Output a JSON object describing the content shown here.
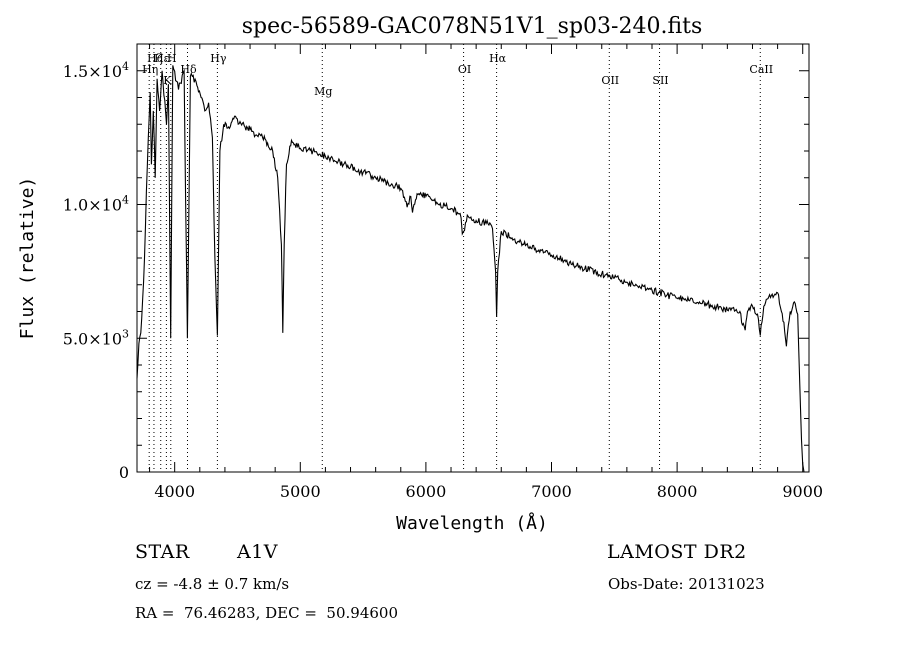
{
  "chart_data": {
    "type": "line",
    "title": "spec-56589-GAC078N51V1_sp03-240.fits",
    "xlabel": "Wavelength (Å)",
    "ylabel": "Flux (relative)",
    "xlim": [
      3700,
      9050
    ],
    "ylim": [
      0,
      16000
    ],
    "x_ticks": [
      {
        "value": 4000,
        "label": "4000"
      },
      {
        "value": 5000,
        "label": "5000"
      },
      {
        "value": 6000,
        "label": "6000"
      },
      {
        "value": 7000,
        "label": "7000"
      },
      {
        "value": 8000,
        "label": "8000"
      },
      {
        "value": 9000,
        "label": "9000"
      }
    ],
    "x_minor_step": 200,
    "y_ticks": [
      {
        "value": 0,
        "mantissa": "0",
        "exponent": ""
      },
      {
        "value": 5000,
        "mantissa": "5.0×10",
        "exponent": "3"
      },
      {
        "value": 10000,
        "mantissa": "1.0×10",
        "exponent": "4"
      },
      {
        "value": 15000,
        "mantissa": "1.5×10",
        "exponent": "4"
      }
    ],
    "y_minor_step": 1000,
    "line_color": "#000000",
    "grid": false,
    "series": [
      {
        "x": [
          3700,
          3715,
          3730,
          3745,
          3760,
          3775,
          3790,
          3805,
          3815,
          3830,
          3845,
          3860,
          3880,
          3900,
          3935,
          3950,
          3968,
          3985,
          4030,
          4075,
          4101,
          4125,
          4170,
          4210,
          4240,
          4270,
          4300,
          4320,
          4340,
          4360,
          4390,
          4430,
          4470,
          4520,
          4560,
          4600,
          4650,
          4700,
          4740,
          4780,
          4820,
          4850,
          4861,
          4872,
          4890,
          4930,
          5000,
          5100,
          5200,
          5300,
          5400,
          5500,
          5600,
          5700,
          5800,
          5850,
          5880,
          5893,
          5905,
          5930,
          6000,
          6050,
          6100,
          6150,
          6200,
          6250,
          6280,
          6290,
          6300,
          6330,
          6400,
          6480,
          6530,
          6555,
          6563,
          6572,
          6600,
          6700,
          6800,
          6900,
          7000,
          7100,
          7200,
          7300,
          7400,
          7500,
          7600,
          7700,
          7800,
          7900,
          8000,
          8100,
          8200,
          8300,
          8400,
          8450,
          8500,
          8520,
          8542,
          8560,
          8600,
          8640,
          8662,
          8690,
          8750,
          8800,
          8830,
          8850,
          8870,
          8900,
          8940,
          8960,
          8975,
          8990,
          9000,
          9010
        ],
        "y": [
          3500,
          4800,
          5200,
          6500,
          8000,
          10500,
          12500,
          14200,
          11500,
          13500,
          11000,
          14700,
          13500,
          15000,
          13000,
          14500,
          5000,
          15200,
          14300,
          15000,
          5000,
          14800,
          14600,
          14000,
          13500,
          13800,
          12500,
          8000,
          5100,
          12000,
          13000,
          12900,
          13200,
          13100,
          12900,
          12800,
          12600,
          12500,
          12300,
          12000,
          11000,
          8500,
          5200,
          8500,
          11500,
          12400,
          12100,
          12000,
          11800,
          11600,
          11400,
          11200,
          11000,
          10800,
          10600,
          9900,
          10300,
          9700,
          10000,
          10400,
          10300,
          10150,
          10000,
          9950,
          9850,
          9700,
          9500,
          8900,
          9000,
          9600,
          9400,
          9300,
          9100,
          7500,
          5800,
          7500,
          9000,
          8700,
          8500,
          8300,
          8100,
          7900,
          7700,
          7550,
          7400,
          7250,
          7100,
          6950,
          6800,
          6650,
          6500,
          6400,
          6300,
          6200,
          6050,
          6150,
          6000,
          5500,
          5300,
          6000,
          6200,
          5900,
          5100,
          6200,
          6600,
          6700,
          6000,
          5600,
          4700,
          6000,
          6300,
          5900,
          3500,
          1200,
          300,
          0
        ]
      }
    ],
    "line_markers": [
      {
        "x": 3797,
        "label": "Hη",
        "level": 1
      },
      {
        "x": 3835,
        "label": "Hζ",
        "level": 0
      },
      {
        "x": 3889,
        "label": "Hε",
        "level": 0
      },
      {
        "x": 3934,
        "label": "K",
        "level": 2
      },
      {
        "x": 3969,
        "label": "H",
        "level": 0
      },
      {
        "x": 4102,
        "label": "Hδ",
        "level": 1
      },
      {
        "x": 4340,
        "label": "Hγ",
        "level": 0
      },
      {
        "x": 5175,
        "label": "Mg",
        "level": 3
      },
      {
        "x": 6300,
        "label": "OI",
        "level": 1
      },
      {
        "x": 6563,
        "label": "Hα",
        "level": 0
      },
      {
        "x": 7460,
        "label": "OII",
        "level": 2
      },
      {
        "x": 7860,
        "label": "SII",
        "level": 2
      },
      {
        "x": 8662,
        "label": "CaII",
        "level": 1
      }
    ]
  },
  "info": {
    "class_label": "STAR",
    "subclass": "A1V",
    "survey": "LAMOST DR2",
    "cz_text": "cz = -4.8 ± 0.7 km/s",
    "obs_date": "Obs-Date: 20131023",
    "coords": "RA =  76.46283, DEC =  50.94600"
  }
}
